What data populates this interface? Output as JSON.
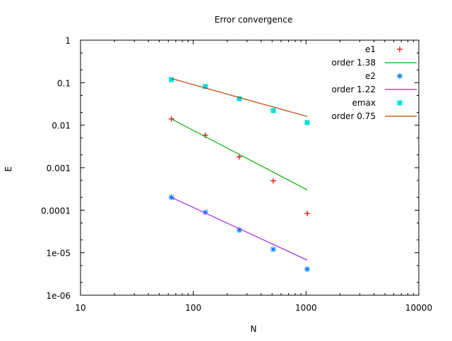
{
  "chart_data": {
    "type": "line",
    "title": "Error convergence",
    "xlabel": "N",
    "ylabel": "E",
    "xscale": "log",
    "yscale": "log",
    "xlim": [
      10,
      10000
    ],
    "ylim": [
      1e-06,
      1
    ],
    "xticks": [
      "10",
      "100",
      "1000",
      "10000"
    ],
    "yticks": [
      "1e-06",
      "1e-05",
      "0.0001",
      "0.001",
      "0.01",
      "0.1",
      "1"
    ],
    "legend_position": "top-right inside",
    "grid": false,
    "x": [
      64,
      128,
      256,
      512,
      1024
    ],
    "series": [
      {
        "name": "e1",
        "type": "points",
        "marker": "+",
        "color": "#e00000",
        "values": [
          0.014,
          0.0058,
          0.0018,
          0.00049,
          8.4e-05
        ]
      },
      {
        "name": "order 1.38",
        "type": "line",
        "color": "#00b000",
        "x": [
          64,
          1024
        ],
        "values": [
          0.014,
          0.0003
        ]
      },
      {
        "name": "e2",
        "type": "points",
        "marker": "*",
        "color": "#0080ff",
        "values": [
          0.0002,
          8.9e-05,
          3.4e-05,
          1.2e-05,
          4.1e-06
        ]
      },
      {
        "name": "order 1.22",
        "type": "line",
        "color": "#a020f0",
        "x": [
          64,
          1024
        ],
        "values": [
          0.0002,
          6.7e-06
        ]
      },
      {
        "name": "emax",
        "type": "points",
        "marker": "filled-square",
        "color": "#00e0e0",
        "values": [
          0.118,
          0.081,
          0.042,
          0.022,
          0.0115
        ]
      },
      {
        "name": "order 0.75",
        "type": "line",
        "color": "#c04000",
        "x": [
          64,
          1024
        ],
        "values": [
          0.125,
          0.016
        ]
      }
    ]
  }
}
